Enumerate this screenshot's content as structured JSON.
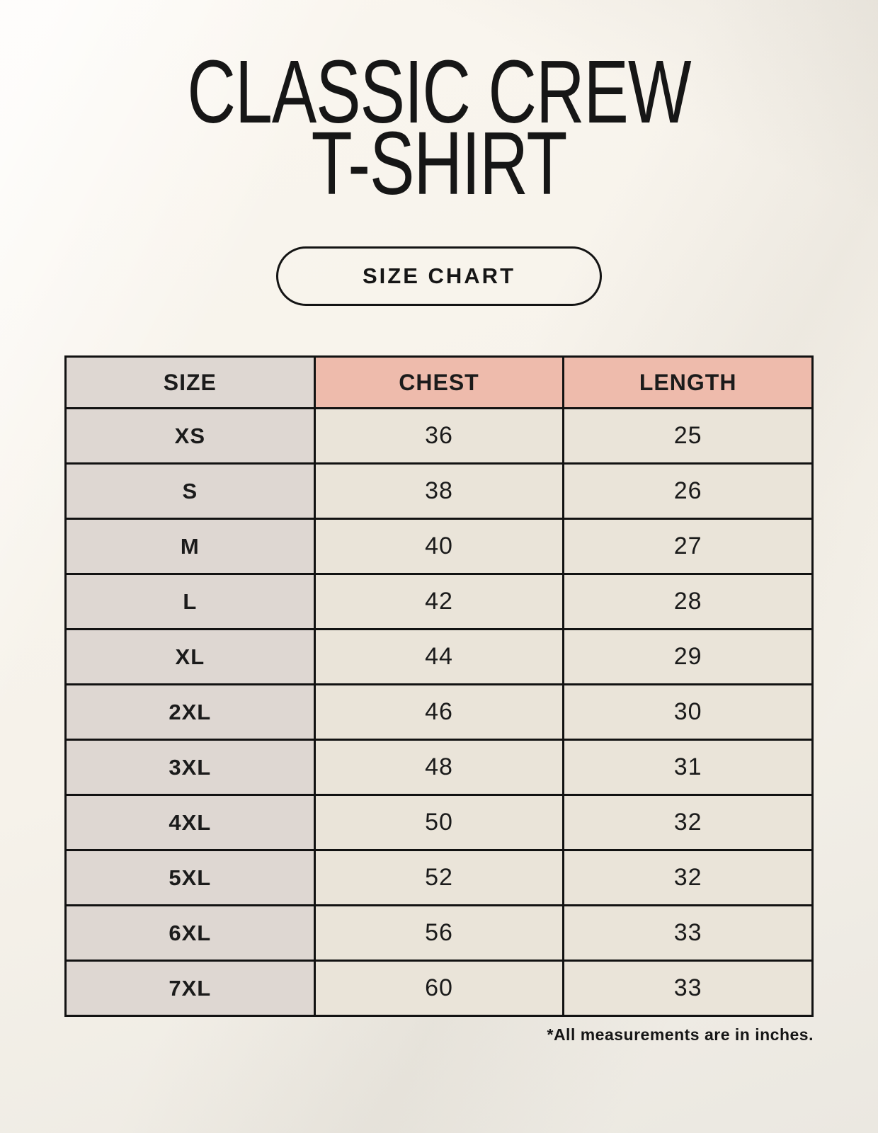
{
  "title": {
    "line1": "CLASSIC CREW",
    "line2": "T-SHIRT"
  },
  "size_chart_button": {
    "label": "SIZE CHART"
  },
  "footnote": "*All measurements are in inches.",
  "colors": {
    "page_background": "#f6f2ea",
    "accent_salmon": "#eebbac",
    "size_column_bg": "#ded7d2",
    "value_cell_bg": "#eae4d9",
    "border": "#121212",
    "text": "#1b1b1b"
  },
  "chart_data": {
    "type": "table",
    "columns": [
      "SIZE",
      "CHEST",
      "LENGTH"
    ],
    "rows": [
      {
        "size": "XS",
        "chest": 36,
        "length": 25
      },
      {
        "size": "S",
        "chest": 38,
        "length": 26
      },
      {
        "size": "M",
        "chest": 40,
        "length": 27
      },
      {
        "size": "L",
        "chest": 42,
        "length": 28
      },
      {
        "size": "XL",
        "chest": 44,
        "length": 29
      },
      {
        "size": "2XL",
        "chest": 46,
        "length": 30
      },
      {
        "size": "3XL",
        "chest": 48,
        "length": 31
      },
      {
        "size": "4XL",
        "chest": 50,
        "length": 32
      },
      {
        "size": "5XL",
        "chest": 52,
        "length": 32
      },
      {
        "size": "6XL",
        "chest": 56,
        "length": 33
      },
      {
        "size": "7XL",
        "chest": 60,
        "length": 33
      }
    ]
  }
}
